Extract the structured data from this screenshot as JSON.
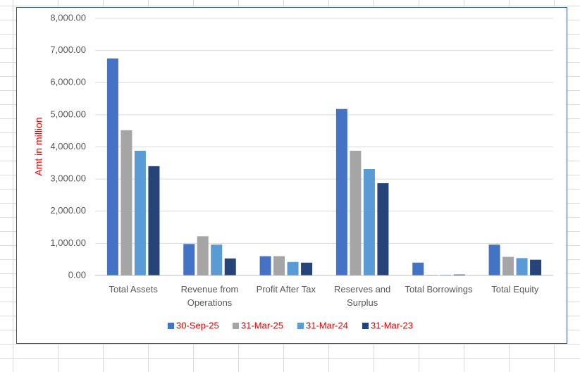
{
  "chart_data": {
    "type": "bar",
    "y_label": "Amt in million",
    "categories": [
      "Total Assets",
      "Revenue from Operations",
      "Profit After Tax",
      "Reserves and Surplus",
      "Total Borrowings",
      "Total Equity"
    ],
    "series": [
      {
        "name": "30-Sep-25",
        "color": "#4472c4",
        "values": [
          6750,
          980,
          600,
          5180,
          400,
          960
        ]
      },
      {
        "name": "31-Mar-25",
        "color": "#a5a5a5",
        "values": [
          4520,
          1220,
          600,
          3880,
          20,
          580
        ]
      },
      {
        "name": "31-Mar-24",
        "color": "#5b9bd5",
        "values": [
          3880,
          960,
          420,
          3310,
          20,
          540
        ]
      },
      {
        "name": "31-Mar-23",
        "color": "#264478",
        "values": [
          3400,
          530,
          400,
          2870,
          30,
          490
        ]
      }
    ],
    "ylim": [
      0,
      8000
    ],
    "yticks": [
      {
        "value": 0,
        "label": "0.00"
      },
      {
        "value": 1000,
        "label": "1,000.00"
      },
      {
        "value": 2000,
        "label": "2,000.00"
      },
      {
        "value": 3000,
        "label": "3,000.00"
      },
      {
        "value": 4000,
        "label": "4,000.00"
      },
      {
        "value": 5000,
        "label": "5,000.00"
      },
      {
        "value": 6000,
        "label": "6,000.00"
      },
      {
        "value": 7000,
        "label": "7,000.00"
      },
      {
        "value": 8000,
        "label": "8,000.00"
      }
    ],
    "grid": true
  }
}
